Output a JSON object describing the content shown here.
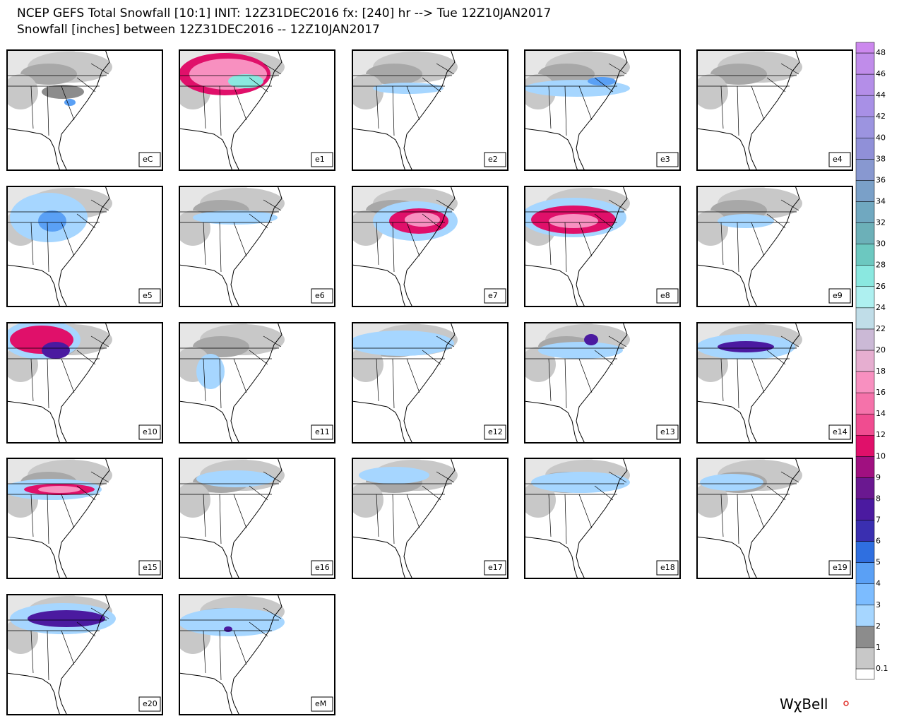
{
  "header": {
    "title": "NCEP GEFS Total Snowfall [10:1] INIT: 12Z31DEC2016 fx: [240] hr --> Tue 12Z10JAN2017",
    "subtitle": "Snowfall [inches] between 12Z31DEC2016 -- 12Z10JAN2017"
  },
  "panels": [
    "eC",
    "e1",
    "e2",
    "e3",
    "e4",
    "e5",
    "e6",
    "e7",
    "e8",
    "e9",
    "e10",
    "e11",
    "e12",
    "e13",
    "e14",
    "e15",
    "e16",
    "e17",
    "e18",
    "e19",
    "e20",
    "eM"
  ],
  "colorbar": {
    "labels": [
      "0.1",
      "1",
      "2",
      "3",
      "4",
      "5",
      "6",
      "7",
      "8",
      "9",
      "10",
      "12",
      "14",
      "16",
      "18",
      "20",
      "22",
      "24",
      "26",
      "28",
      "30",
      "32",
      "34",
      "36",
      "38",
      "40",
      "42",
      "44",
      "46",
      "48"
    ],
    "colors": [
      "#ffffff",
      "#c8c8c8",
      "#8c8c8c",
      "#a6d6ff",
      "#7cbcff",
      "#5aa0f5",
      "#2f6fe0",
      "#3a2fb0",
      "#4b1aa0",
      "#6a1890",
      "#a01080",
      "#e0106a",
      "#f04c90",
      "#f572aa",
      "#f890c0",
      "#e6aed0",
      "#cbb9d6",
      "#c0dde8",
      "#aef0f0",
      "#8ae8e0",
      "#6cc8c0",
      "#6cb0b8",
      "#70a8c0",
      "#7aa0c8",
      "#8898d0",
      "#9090d8",
      "#9c94e0",
      "#a890e6",
      "#b48ee8",
      "#c08cea",
      "#cc88ee"
    ]
  },
  "logo": "WχBell"
}
